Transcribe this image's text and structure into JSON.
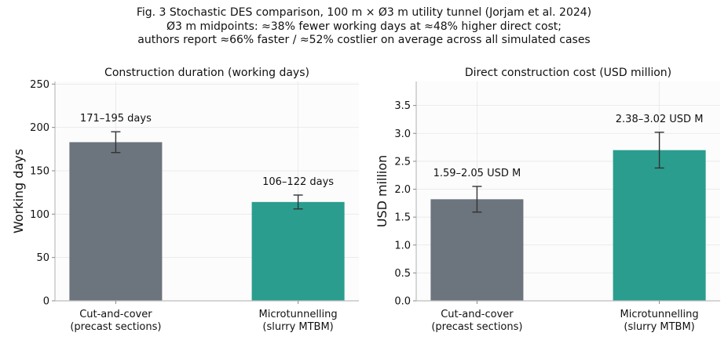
{
  "figure": {
    "title_lines": [
      "Fig. 3  Stochastic DES comparison, 100 m × Ø3 m utility tunnel (Jorjam et al. 2024)",
      "Ø3 m midpoints: ≈38% fewer working days at ≈48% higher direct cost;",
      "authors report ≈66% faster / ≈52% costlier on average across all simulated cases"
    ]
  },
  "chart_data": [
    {
      "type": "bar",
      "title": "Construction duration (working days)",
      "xlabel": "",
      "ylabel": "Working days",
      "categories": [
        "Cut-and-cover\n(precast sections)",
        "Microtunnelling\n(slurry MTBM)"
      ],
      "values": [
        183,
        114
      ],
      "error_low": [
        171,
        106
      ],
      "error_high": [
        195,
        122
      ],
      "data_labels": [
        "171–195 days",
        "106–122 days"
      ],
      "colors": [
        "#6c757d",
        "#2a9d8f"
      ],
      "ylim": [
        0,
        253
      ],
      "yticks": [
        0,
        50,
        100,
        150,
        200,
        250
      ],
      "grid": true
    },
    {
      "type": "bar",
      "title": "Direct construction cost (USD million)",
      "xlabel": "",
      "ylabel": "USD million",
      "categories": [
        "Cut-and-cover\n(precast sections)",
        "Microtunnelling\n(slurry MTBM)"
      ],
      "values": [
        1.82,
        2.7
      ],
      "error_low": [
        1.59,
        2.38
      ],
      "error_high": [
        2.05,
        3.02
      ],
      "data_labels": [
        "1.59–2.05 USD M",
        "2.38–3.02 USD M"
      ],
      "colors": [
        "#6c757d",
        "#2a9d8f"
      ],
      "ylim": [
        0,
        3.93
      ],
      "yticks": [
        0.0,
        0.5,
        1.0,
        1.5,
        2.0,
        2.5,
        3.0,
        3.5
      ],
      "grid": true
    }
  ]
}
